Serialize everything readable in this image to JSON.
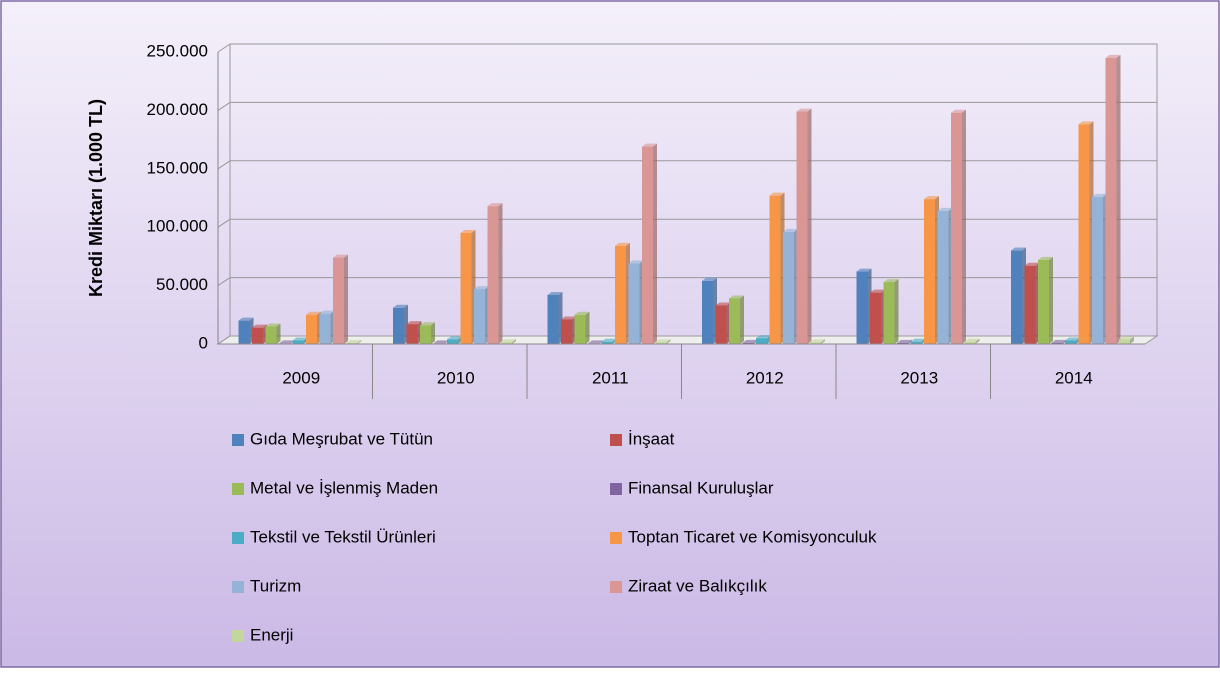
{
  "chart_data": {
    "type": "bar",
    "y_label": "Kredi Miktarı (1.000 TL)",
    "categories": [
      "2009",
      "2010",
      "2011",
      "2012",
      "2013",
      "2014"
    ],
    "series": [
      {
        "name": "Gıda Meşrubat ve Tütün",
        "color": "#4f81bd",
        "values": [
          20000,
          31000,
          42000,
          54000,
          62000,
          80000
        ]
      },
      {
        "name": "İnşaat",
        "color": "#c0504d",
        "values": [
          14000,
          17000,
          21000,
          33000,
          44000,
          67000
        ]
      },
      {
        "name": "Metal ve İşlenmiş Maden",
        "color": "#9bbb59",
        "values": [
          15000,
          16000,
          25000,
          39000,
          53000,
          72000
        ]
      },
      {
        "name": "Finansal Kuruluşlar",
        "color": "#8064a2",
        "values": [
          500,
          500,
          500,
          1000,
          1000,
          1000
        ]
      },
      {
        "name": "Tekstil ve Tekstil Ürünleri",
        "color": "#4bacc6",
        "values": [
          3000,
          4000,
          2000,
          5000,
          2000,
          3000
        ]
      },
      {
        "name": "Toptan Ticaret ve Komisyonculuk",
        "color": "#f79646",
        "values": [
          25000,
          95000,
          84000,
          127000,
          124000,
          188000
        ]
      },
      {
        "name": "Turizm",
        "color": "#95b3d7",
        "values": [
          26000,
          47000,
          69000,
          96000,
          114000,
          126000
        ]
      },
      {
        "name": "Ziraat ve Balıkçılık",
        "color": "#d99694",
        "values": [
          74000,
          118000,
          169000,
          199000,
          198000,
          245000
        ]
      },
      {
        "name": "Enerji",
        "color": "#c3d69b",
        "values": [
          1000,
          1500,
          1500,
          1500,
          2000,
          4000
        ]
      }
    ],
    "ylim": [
      0,
      250000
    ],
    "yticks": [
      0,
      {
        "value": 50000,
        "label": "50.000"
      },
      {
        "value": 100000,
        "label": "100.000"
      },
      {
        "value": 150000,
        "label": "150.000"
      },
      {
        "value": 200000,
        "label": "200.000"
      },
      {
        "value": 250000,
        "label": "250.000"
      }
    ],
    "grid": true,
    "legend": "bottom"
  }
}
